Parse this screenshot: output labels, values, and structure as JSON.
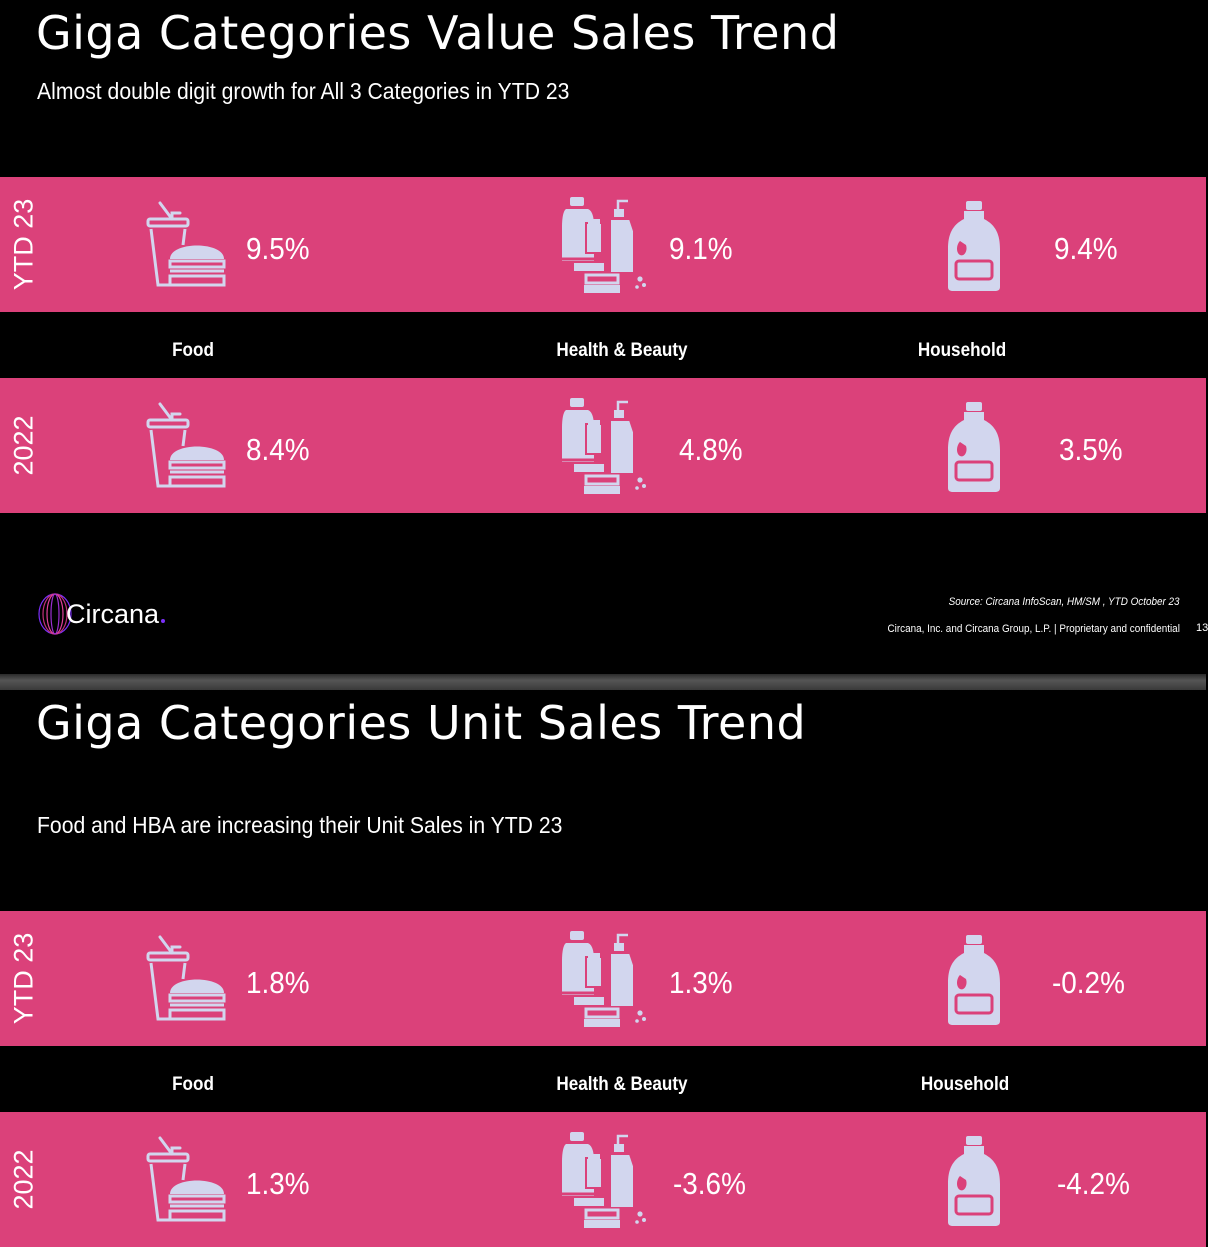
{
  "slides": [
    {
      "title": "Giga Categories Value Sales Trend",
      "subtitle": "Almost double digit growth for All 3 Categories in YTD 23",
      "rows": [
        {
          "year": "YTD 23",
          "values": [
            "9.5%",
            "9.1%",
            "9.4%"
          ]
        },
        {
          "year": "2022",
          "values": [
            "8.4%",
            "4.8%",
            "3.5%"
          ]
        }
      ],
      "categories": [
        "Food",
        "Health & Beauty",
        "Household"
      ]
    },
    {
      "title": "Giga Categories Unit Sales Trend",
      "subtitle": "Food and HBA are increasing their Unit Sales in YTD 23",
      "rows": [
        {
          "year": "YTD 23",
          "values": [
            "1.8%",
            "1.3%",
            "-0.2%"
          ]
        },
        {
          "year": "2022",
          "values": [
            "1.3%",
            "-3.6%",
            "-4.2%"
          ]
        }
      ],
      "categories": [
        "Food",
        "Health & Beauty",
        "Household"
      ]
    }
  ],
  "footer": {
    "logo_text": "Circana",
    "source": "Source: Circana InfoScan, HM/SM , YTD October 23",
    "legal": "Circana, Inc. and Circana Group, L.P. |  Proprietary and confidential",
    "page_number": "13"
  },
  "colors": {
    "band": "#db417a",
    "icon": "#d2d6ee",
    "background": "#000000",
    "logo_accent": "#7b2ff7"
  },
  "icons": [
    "food-icon",
    "health-beauty-icon",
    "household-icon"
  ]
}
